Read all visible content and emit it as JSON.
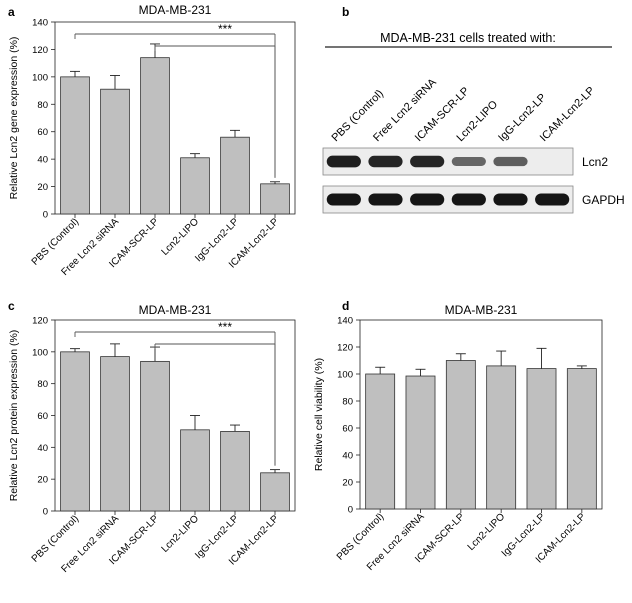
{
  "panel_letters": {
    "a": "a",
    "b": "b",
    "c": "c",
    "d": "d"
  },
  "colors": {
    "bar": "#bfbfbf",
    "bar_edge": "#333333",
    "axis": "#222222",
    "band": "#151515",
    "significance": "#555555"
  },
  "chart_data": [
    {
      "panel": "a",
      "type": "bar",
      "title": "MDA-MB-231",
      "ylabel": "Relative Lcn2 gene expression (%)",
      "xlabel": "",
      "ylim": [
        0,
        140
      ],
      "yticks": [
        0,
        20,
        40,
        60,
        80,
        100,
        120,
        140
      ],
      "categories": [
        "PBS (Control)",
        "Free Lcn2 siRNA",
        "ICAM-SCR-LP",
        "Lcn2-LIPO",
        "IgG-Lcn2-LP",
        "ICAM-Lcn2-LP"
      ],
      "values": [
        100,
        91,
        114,
        41,
        56,
        22
      ],
      "errors": [
        4,
        10,
        10,
        3,
        5,
        1.5
      ],
      "significance": {
        "label": "***",
        "from": [
          0,
          2
        ],
        "to": 5
      }
    },
    {
      "panel": "c",
      "type": "bar",
      "title": "MDA-MB-231",
      "ylabel": "Relative Lcn2 protein expression (%)",
      "xlabel": "",
      "ylim": [
        0,
        120
      ],
      "yticks": [
        0,
        20,
        40,
        60,
        80,
        100,
        120
      ],
      "categories": [
        "PBS (Control)",
        "Free Lcn2 siRNA",
        "ICAM-SCR-LP",
        "Lcn2-LIPO",
        "IgG-Lcn2-LP",
        "ICAM-Lcn2-LP"
      ],
      "values": [
        100,
        97,
        94,
        51,
        50,
        24
      ],
      "errors": [
        2,
        8,
        9,
        9,
        4,
        2
      ],
      "significance": {
        "label": "***",
        "from": [
          0,
          2
        ],
        "to": 5
      }
    },
    {
      "panel": "d",
      "type": "bar",
      "title": "MDA-MB-231",
      "ylabel": "Relative cell viability (%)",
      "xlabel": "",
      "ylim": [
        0,
        140
      ],
      "yticks": [
        0,
        20,
        40,
        60,
        80,
        100,
        120,
        140
      ],
      "categories": [
        "PBS (Control)",
        "Free Lcn2 siRNA",
        "ICAM-SCR-LP",
        "Lcn2-LIPO",
        "IgG-Lcn2-LP",
        "ICAM-Lcn2-LP"
      ],
      "values": [
        100,
        98.5,
        110,
        106,
        104,
        104
      ],
      "errors": [
        5,
        5,
        5,
        11,
        15,
        2
      ]
    }
  ],
  "western_blot": {
    "title": "MDA-MB-231 cells treated with:",
    "lanes": [
      "PBS (Control)",
      "Free Lcn2 siRNA",
      "ICAM-SCR-LP",
      "Lcn2-LIPO",
      "IgG-Lcn2-LP",
      "ICAM-Lcn2-LP"
    ],
    "rows": [
      {
        "label": "Lcn2",
        "intensities": [
          0.95,
          0.9,
          0.9,
          0.5,
          0.55,
          0
        ]
      },
      {
        "label": "GAPDH",
        "intensities": [
          1,
          1,
          1,
          1,
          1,
          1
        ]
      }
    ]
  }
}
